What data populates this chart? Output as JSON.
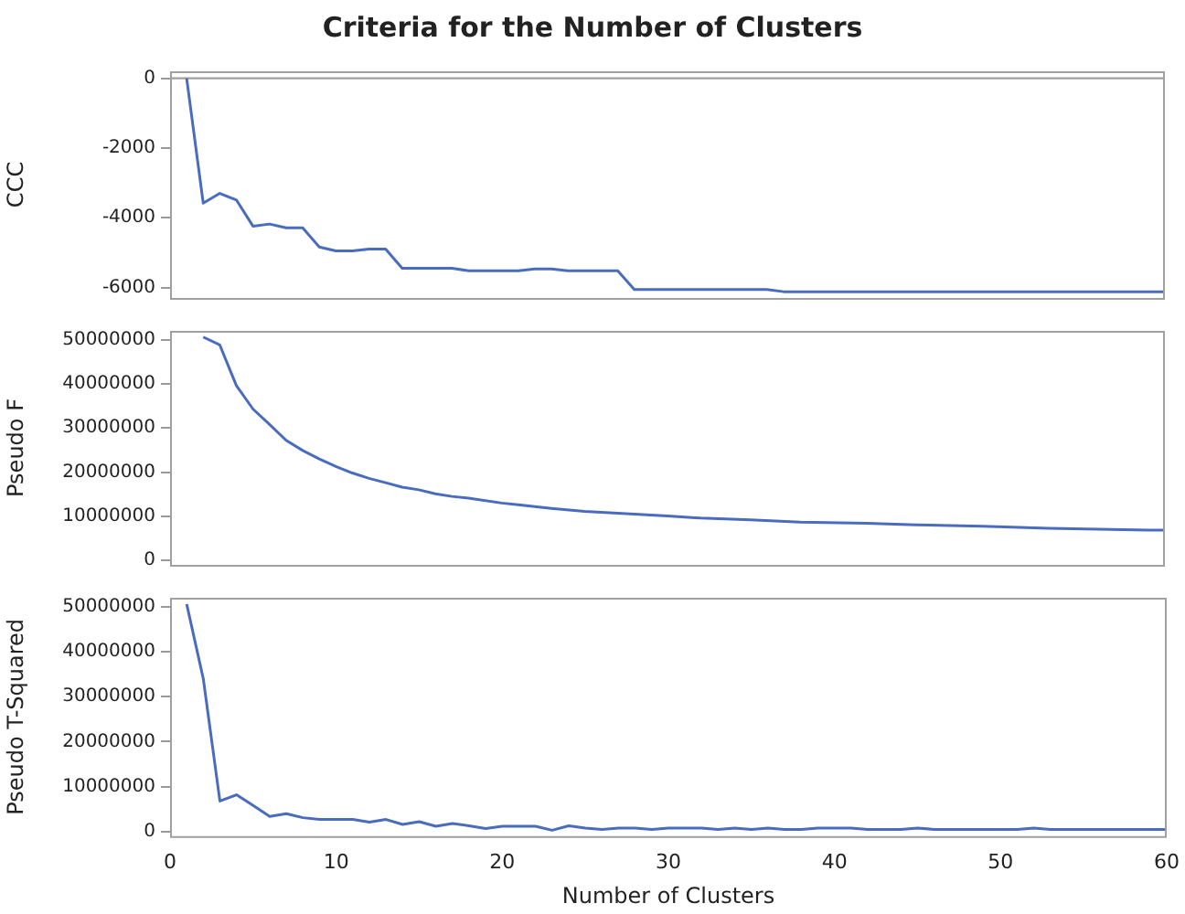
{
  "chart_data": [
    {
      "type": "line",
      "title": "Criteria for the Number of Clusters",
      "ylabel": "CCC",
      "xlim": [
        0,
        60
      ],
      "ylim": [
        -6300,
        200
      ],
      "yticks": [
        0,
        -2000,
        -4000,
        -6000
      ],
      "tick_labels": "y",
      "grid": false,
      "legend": false,
      "marker": "none",
      "line_style": "solid",
      "ref_lines": [
        {
          "axis": "y",
          "value": 0,
          "color": "#a0a0a0"
        }
      ],
      "series": [
        {
          "color": "#4a6cbf",
          "x": [
            1,
            2,
            3,
            4,
            5,
            6,
            7,
            8,
            9,
            10,
            11,
            12,
            13,
            14,
            17,
            18,
            21,
            22,
            23,
            24,
            27,
            28,
            36,
            37,
            60
          ],
          "values": [
            0,
            -3580,
            -3300,
            -3490,
            -4240,
            -4180,
            -4290,
            -4290,
            -4840,
            -4950,
            -4950,
            -4900,
            -4900,
            -5450,
            -5450,
            -5520,
            -5520,
            -5470,
            -5470,
            -5520,
            -5520,
            -6060,
            -6060,
            -6120,
            -6120
          ]
        }
      ]
    },
    {
      "type": "line",
      "ylabel": "Pseudo F",
      "xlim": [
        0,
        60
      ],
      "ylim": [
        -1000000,
        52000000
      ],
      "yticks": [
        0,
        10000000,
        20000000,
        30000000,
        40000000,
        50000000
      ],
      "tick_labels": "y",
      "grid": false,
      "legend": false,
      "marker": "none",
      "line_style": "solid",
      "series": [
        {
          "color": "#4a6cbf",
          "x": [
            2,
            3,
            4,
            5,
            6,
            7,
            8,
            9,
            10,
            11,
            12,
            13,
            14,
            15,
            16,
            17,
            18,
            20,
            21,
            23,
            25,
            27,
            30,
            32,
            35,
            38,
            42,
            45,
            49,
            53,
            59,
            60
          ],
          "values": [
            50600000,
            48800000,
            39600000,
            34300000,
            30800000,
            27200000,
            24900000,
            23000000,
            21300000,
            19800000,
            18600000,
            17600000,
            16600000,
            16000000,
            15100000,
            14500000,
            14100000,
            13000000,
            12600000,
            11800000,
            11100000,
            10700000,
            10100000,
            9600000,
            9200000,
            8700000,
            8440000,
            8080000,
            7750000,
            7290000,
            6880000,
            6880000
          ]
        }
      ]
    },
    {
      "type": "line",
      "ylabel": "Pseudo T-Squared",
      "xlabel": "Number of Clusters",
      "xlim": [
        0,
        60
      ],
      "xticks": [
        0,
        10,
        20,
        30,
        40,
        50,
        60
      ],
      "ylim": [
        -1000000,
        52000000
      ],
      "yticks": [
        0,
        10000000,
        20000000,
        30000000,
        40000000,
        50000000
      ],
      "grid": false,
      "legend": false,
      "marker": "none",
      "line_style": "solid",
      "series": [
        {
          "color": "#4a6cbf",
          "x": [
            1,
            2,
            3,
            4,
            5,
            6,
            7,
            8,
            9,
            10,
            11,
            12,
            13,
            14,
            15,
            16,
            17,
            18,
            19,
            20,
            21,
            22,
            23,
            24,
            25,
            26,
            27,
            28,
            29,
            30,
            31,
            32,
            33,
            34,
            35,
            36,
            37,
            38,
            39,
            40,
            41,
            42,
            43,
            44,
            45,
            46,
            51,
            52,
            53,
            60
          ],
          "values": [
            50600000,
            34000000,
            6800000,
            8200000,
            5800000,
            3400000,
            4000000,
            3100000,
            2700000,
            2700000,
            2700000,
            2100000,
            2700000,
            1600000,
            2200000,
            1200000,
            1800000,
            1300000,
            700000,
            1200000,
            1200000,
            1200000,
            300000,
            1300000,
            800000,
            500000,
            800000,
            800000,
            500000,
            800000,
            800000,
            800000,
            500000,
            800000,
            500000,
            800000,
            500000,
            500000,
            800000,
            800000,
            800000,
            500000,
            500000,
            500000,
            800000,
            500000,
            500000,
            800000,
            500000,
            500000
          ]
        }
      ]
    }
  ]
}
